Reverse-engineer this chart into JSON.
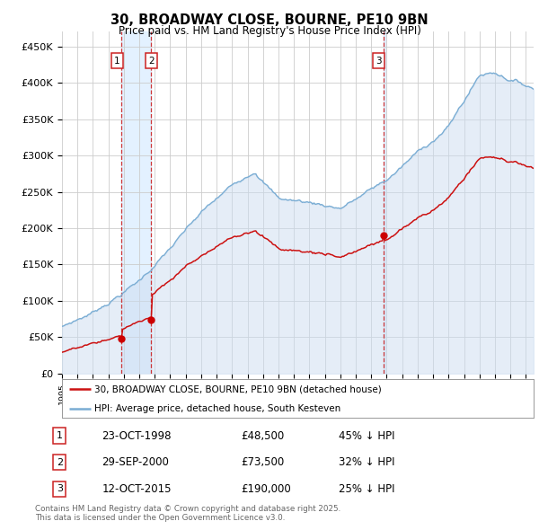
{
  "title": "30, BROADWAY CLOSE, BOURNE, PE10 9BN",
  "subtitle": "Price paid vs. HM Land Registry's House Price Index (HPI)",
  "ylabel_ticks": [
    "£0",
    "£50K",
    "£100K",
    "£150K",
    "£200K",
    "£250K",
    "£300K",
    "£350K",
    "£400K",
    "£450K"
  ],
  "ytick_vals": [
    0,
    50000,
    100000,
    150000,
    200000,
    250000,
    300000,
    350000,
    400000,
    450000
  ],
  "ylim": [
    0,
    470000
  ],
  "xlim_start": 1995.3,
  "xlim_end": 2025.5,
  "sale_dates": [
    1998.81,
    2000.75,
    2015.79
  ],
  "sale_prices": [
    48500,
    73500,
    190000
  ],
  "sale_labels": [
    "1",
    "2",
    "3"
  ],
  "vline_color": "#cc2222",
  "sale_dot_color": "#cc0000",
  "hpi_line_color": "#7aadd4",
  "hpi_fill_color": "#ccddf0",
  "price_line_color": "#cc1111",
  "shade_between_sales_color": "#ddeeff",
  "legend_label_price": "30, BROADWAY CLOSE, BOURNE, PE10 9BN (detached house)",
  "legend_label_hpi": "HPI: Average price, detached house, South Kesteven",
  "table_rows": [
    {
      "num": "1",
      "date": "23-OCT-1998",
      "price": "£48,500",
      "note": "45% ↓ HPI"
    },
    {
      "num": "2",
      "date": "29-SEP-2000",
      "price": "£73,500",
      "note": "32% ↓ HPI"
    },
    {
      "num": "3",
      "date": "12-OCT-2015",
      "price": "£190,000",
      "note": "25% ↓ HPI"
    }
  ],
  "footnote": "Contains HM Land Registry data © Crown copyright and database right 2025.\nThis data is licensed under the Open Government Licence v3.0.",
  "background_color": "#ffffff",
  "grid_color": "#cccccc"
}
